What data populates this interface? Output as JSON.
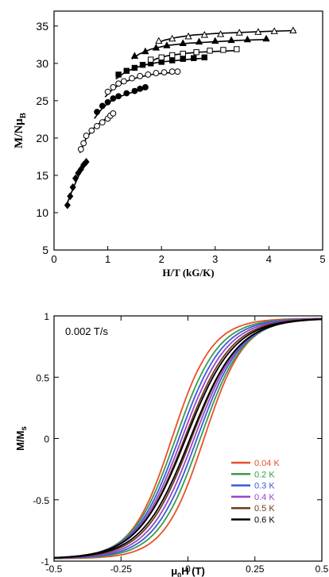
{
  "chart_data": [
    {
      "type": "scatter",
      "xlabel": "H/T (kG/K)",
      "ylabel_main": "M/Nμ",
      "ylabel_sub": "B",
      "xlim": [
        0,
        5
      ],
      "ylim": [
        5,
        37
      ],
      "xticks": [
        "0",
        "1",
        "2",
        "3",
        "4",
        "5"
      ],
      "yticks": [
        "5",
        "10",
        "15",
        "20",
        "25",
        "30",
        "35"
      ],
      "series": [
        {
          "marker": "diamond-filled",
          "x": [
            0.25,
            0.3,
            0.35,
            0.4,
            0.45,
            0.5,
            0.55,
            0.6
          ],
          "y": [
            11.0,
            12.2,
            13.4,
            14.6,
            15.3,
            15.8,
            16.4,
            16.8
          ]
        },
        {
          "marker": "circle-open",
          "x": [
            0.5,
            0.55,
            0.6,
            0.7,
            0.8,
            0.9,
            1.0,
            1.05,
            1.1
          ],
          "y": [
            18.5,
            19.3,
            20.3,
            21.0,
            21.6,
            22.1,
            22.6,
            23.0,
            23.3
          ]
        },
        {
          "marker": "circle-filled",
          "x": [
            0.8,
            0.9,
            1.0,
            1.1,
            1.2,
            1.35,
            1.5,
            1.6,
            1.7
          ],
          "y": [
            23.5,
            24.3,
            24.8,
            25.3,
            25.6,
            26.0,
            26.3,
            26.6,
            26.8
          ]
        },
        {
          "marker": "circle-open",
          "x": [
            1.0,
            1.1,
            1.2,
            1.3,
            1.45,
            1.6,
            1.75,
            1.9,
            2.05,
            2.2,
            2.3
          ],
          "y": [
            26.2,
            26.8,
            27.3,
            27.6,
            28.0,
            28.3,
            28.5,
            28.7,
            28.8,
            28.9,
            28.9
          ]
        },
        {
          "marker": "square-filled",
          "x": [
            1.2,
            1.35,
            1.5,
            1.65,
            1.8,
            2.0,
            2.2,
            2.4,
            2.6,
            2.8
          ],
          "y": [
            28.5,
            29.0,
            29.4,
            29.8,
            30.0,
            30.2,
            30.4,
            30.6,
            30.7,
            30.8
          ]
        },
        {
          "marker": "square-open",
          "x": [
            1.8,
            2.0,
            2.2,
            2.4,
            2.65,
            2.9,
            3.15,
            3.4
          ],
          "y": [
            30.5,
            30.8,
            31.1,
            31.3,
            31.5,
            31.7,
            31.8,
            31.9
          ]
        },
        {
          "marker": "triangle-filled",
          "x": [
            1.5,
            1.7,
            1.9,
            2.1,
            2.4,
            2.7,
            3.0,
            3.3,
            3.6,
            3.95
          ],
          "y": [
            31.0,
            31.6,
            32.1,
            32.4,
            32.7,
            32.9,
            33.0,
            33.1,
            33.2,
            33.3
          ]
        },
        {
          "marker": "triangle-open",
          "x": [
            1.95,
            2.2,
            2.5,
            2.8,
            3.1,
            3.45,
            3.8,
            4.1,
            4.45
          ],
          "y": [
            33.0,
            33.3,
            33.6,
            33.8,
            33.9,
            34.1,
            34.2,
            34.3,
            34.4
          ]
        }
      ],
      "fits": [
        {
          "x": [
            0.22,
            0.35,
            0.5,
            0.6
          ],
          "y": [
            10.8,
            13.2,
            15.6,
            17.0
          ]
        },
        {
          "x": [
            0.48,
            0.6,
            0.75,
            0.9,
            1.05,
            1.12
          ],
          "y": [
            18.0,
            20.0,
            21.4,
            22.3,
            22.9,
            23.2
          ]
        },
        {
          "x": [
            0.75,
            0.9,
            1.05,
            1.2,
            1.4,
            1.6,
            1.75
          ],
          "y": [
            22.6,
            24.0,
            24.9,
            25.5,
            26.0,
            26.4,
            26.7
          ]
        },
        {
          "x": [
            0.95,
            1.1,
            1.3,
            1.55,
            1.8,
            2.05,
            2.35
          ],
          "y": [
            25.5,
            26.6,
            27.5,
            28.1,
            28.5,
            28.7,
            28.8
          ]
        },
        {
          "x": [
            1.15,
            1.3,
            1.5,
            1.75,
            2.0,
            2.3,
            2.6,
            2.85
          ],
          "y": [
            27.9,
            28.7,
            29.4,
            29.9,
            30.2,
            30.4,
            30.6,
            30.7
          ]
        },
        {
          "x": [
            1.75,
            1.9,
            2.1,
            2.4,
            2.7,
            3.0,
            3.3,
            3.45
          ],
          "y": [
            30.0,
            30.6,
            31.0,
            31.3,
            31.5,
            31.6,
            31.7,
            31.75
          ]
        },
        {
          "x": [
            1.45,
            1.6,
            1.8,
            2.1,
            2.5,
            3.0,
            3.5,
            4.0
          ],
          "y": [
            30.6,
            31.3,
            31.9,
            32.4,
            32.7,
            32.9,
            33.1,
            33.2
          ]
        },
        {
          "x": [
            1.9,
            2.05,
            2.3,
            2.6,
            3.0,
            3.5,
            4.0,
            4.5
          ],
          "y": [
            32.7,
            33.1,
            33.5,
            33.8,
            34.0,
            34.15,
            34.3,
            34.4
          ]
        }
      ]
    },
    {
      "type": "line",
      "annotation": "0.002 T/s",
      "xlabel_main": "μ",
      "xlabel_sub": "0",
      "xlabel_rest": "H (T)",
      "ylabel_main": "M/M",
      "ylabel_sub": "s",
      "xlim": [
        -0.5,
        0.5
      ],
      "ylim": [
        -1,
        1
      ],
      "xticks": [
        "-0.5",
        "-0.25",
        "0",
        "0.25",
        "0.5"
      ],
      "yticks": [
        "-1",
        "-0.5",
        "0",
        "0.5",
        "1"
      ],
      "legend_position": "lower-right",
      "series": [
        {
          "name": "0.04 K",
          "color": "#e8502a",
          "coercive_field": 0.06,
          "width": 0.15
        },
        {
          "name": "0.2 K",
          "color": "#3a9a4a",
          "coercive_field": 0.046,
          "width": 0.16
        },
        {
          "name": "0.3 K",
          "color": "#3b5bd9",
          "coercive_field": 0.034,
          "width": 0.165
        },
        {
          "name": "0.4 K",
          "color": "#9a45c8",
          "coercive_field": 0.023,
          "width": 0.17
        },
        {
          "name": "0.5 K",
          "color": "#6b3a1f",
          "coercive_field": 0.013,
          "width": 0.175
        },
        {
          "name": "0.6 K",
          "color": "#000000",
          "coercive_field": 0.008,
          "width": 0.18
        }
      ]
    }
  ]
}
